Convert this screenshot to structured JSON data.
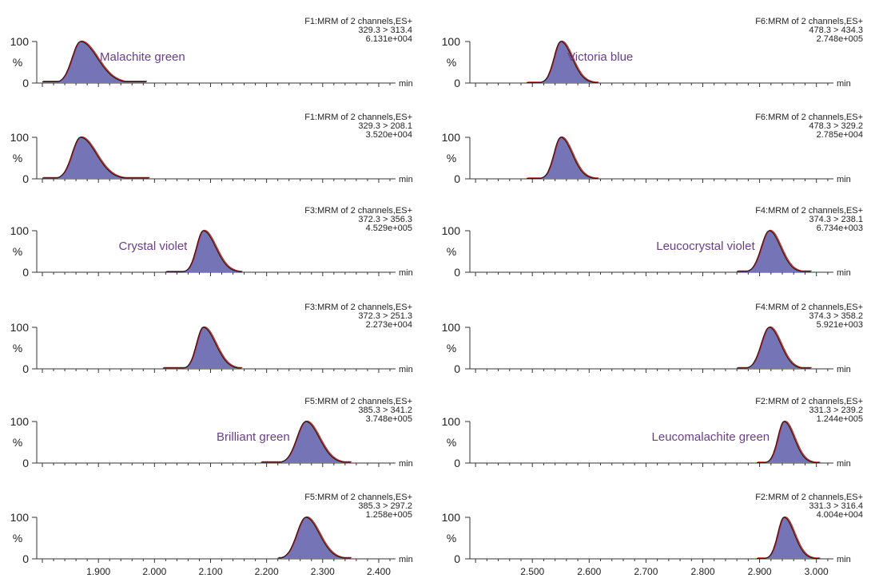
{
  "chart_data": {
    "type": "area",
    "y_unit": "%",
    "x_unit": "min",
    "y_ticks": [
      "0",
      "%",
      "100"
    ],
    "colors": {
      "fill": "#7474b6",
      "outline": "#1a1a1a",
      "fit": "#d62828",
      "label": "#6b3d8f"
    },
    "left_axis": {
      "xlim": [
        1.79,
        2.43
      ],
      "ticks": [
        1.9,
        2.0,
        2.1,
        2.2,
        2.3,
        2.4
      ],
      "tick_labels": [
        "1.900",
        "2.000",
        "2.100",
        "2.200",
        "2.300",
        "2.400"
      ]
    },
    "right_axis": {
      "xlim": [
        2.39,
        3.03
      ],
      "ticks": [
        2.5,
        2.6,
        2.7,
        2.8,
        2.9,
        3.0
      ],
      "tick_labels": [
        "2.500",
        "2.600",
        "2.700",
        "2.800",
        "2.900",
        "3.000"
      ]
    },
    "panels": [
      {
        "col": 0,
        "header": [
          "F1:MRM of 2 channels,ES+",
          "329.3 > 313.4",
          "6.131e+004"
        ],
        "compound": "Malachite green",
        "peak": {
          "center": 1.868,
          "sigma": 0.015,
          "tail": 0.03,
          "start": 1.8,
          "end": 1.985,
          "baseline": 3
        }
      },
      {
        "col": 0,
        "header": [
          "F1:MRM of 2 channels,ES+",
          "329.3 > 208.1",
          "3.520e+004"
        ],
        "compound": "",
        "peak": {
          "center": 1.868,
          "sigma": 0.015,
          "tail": 0.028,
          "start": 1.8,
          "end": 1.99,
          "baseline": 2
        }
      },
      {
        "col": 0,
        "header": [
          "F3:MRM of 2 channels,ES+",
          "372.3 > 356.3",
          "4.529e+005"
        ],
        "compound": "Crystal violet",
        "peak": {
          "center": 2.087,
          "sigma": 0.012,
          "tail": 0.022,
          "start": 2.02,
          "end": 2.155,
          "baseline": 1
        }
      },
      {
        "col": 0,
        "header": [
          "F3:MRM of 2 channels,ES+",
          "372.3 > 251.3",
          "2.273e+004"
        ],
        "compound": "",
        "peak": {
          "center": 2.087,
          "sigma": 0.012,
          "tail": 0.022,
          "start": 2.015,
          "end": 2.155,
          "baseline": 2
        }
      },
      {
        "col": 0,
        "header": [
          "F5:MRM of 2 channels,ES+",
          "385.3 > 341.2",
          "3.748e+005"
        ],
        "compound": "Brilliant green",
        "peak": {
          "center": 2.27,
          "sigma": 0.016,
          "tail": 0.024,
          "start": 2.19,
          "end": 2.35,
          "baseline": 2
        }
      },
      {
        "col": 0,
        "header": [
          "F5:MRM of 2 channels,ES+",
          "385.3 > 297.2",
          "1.258e+005"
        ],
        "compound": "",
        "peak": {
          "center": 2.27,
          "sigma": 0.016,
          "tail": 0.024,
          "start": 2.22,
          "end": 2.35,
          "baseline": 2
        }
      },
      {
        "col": 1,
        "header": [
          "F6:MRM of 2 channels,ES+",
          "478.3 > 434.3",
          "2.748e+005"
        ],
        "compound": "Victoria blue",
        "peak": {
          "center": 2.55,
          "sigma": 0.012,
          "tail": 0.02,
          "start": 2.49,
          "end": 2.615,
          "baseline": 1
        }
      },
      {
        "col": 1,
        "header": [
          "F6:MRM of 2 channels,ES+",
          "478.3 > 329.2",
          "2.785e+004"
        ],
        "compound": "",
        "peak": {
          "center": 2.55,
          "sigma": 0.012,
          "tail": 0.02,
          "start": 2.49,
          "end": 2.615,
          "baseline": 1
        }
      },
      {
        "col": 1,
        "header": [
          "F4:MRM of 2 channels,ES+",
          "374.3 > 238.1",
          "6.734e+003"
        ],
        "compound": "Leucocrystal violet",
        "peak": {
          "center": 2.917,
          "sigma": 0.014,
          "tail": 0.02,
          "start": 2.86,
          "end": 2.99,
          "baseline": 2
        }
      },
      {
        "col": 1,
        "header": [
          "F4:MRM of 2 channels,ES+",
          "374.3 > 358.2",
          "5.921e+003"
        ],
        "compound": "",
        "peak": {
          "center": 2.917,
          "sigma": 0.014,
          "tail": 0.02,
          "start": 2.86,
          "end": 2.99,
          "baseline": 2
        }
      },
      {
        "col": 1,
        "header": [
          "F2:MRM of 2 channels,ES+",
          "331.3 > 239.2",
          "1.244e+005"
        ],
        "compound": "Leucomalachite green",
        "peak": {
          "center": 2.943,
          "sigma": 0.011,
          "tail": 0.018,
          "start": 2.895,
          "end": 3.005,
          "baseline": 1
        }
      },
      {
        "col": 1,
        "header": [
          "F2:MRM of 2 channels,ES+",
          "331.3 > 316.4",
          "4.004e+004"
        ],
        "compound": "",
        "peak": {
          "center": 2.943,
          "sigma": 0.011,
          "tail": 0.018,
          "start": 2.895,
          "end": 3.005,
          "baseline": 1
        }
      }
    ]
  }
}
